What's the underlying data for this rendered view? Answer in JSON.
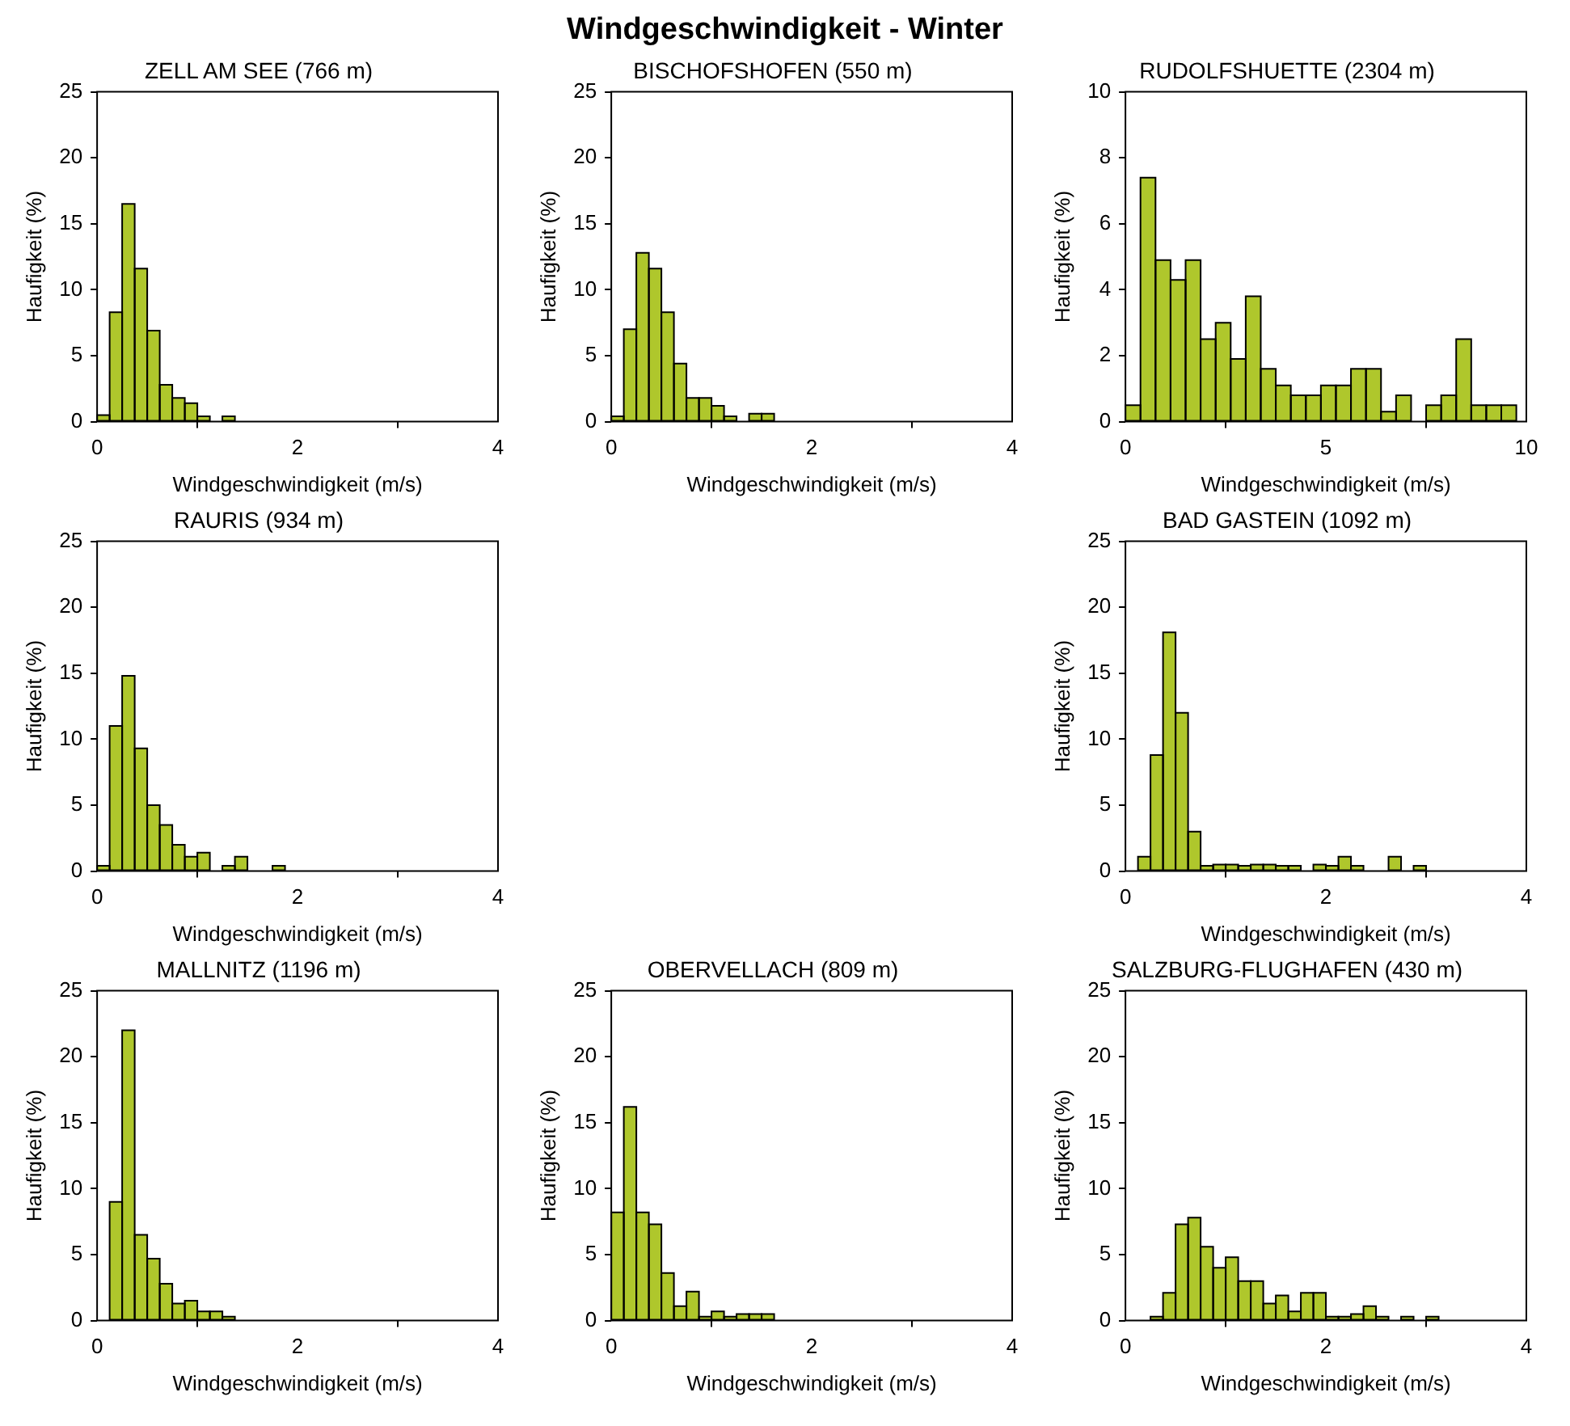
{
  "chart_data": [
    {
      "type": "histogram",
      "title": "ZELL AM SEE (766 m)",
      "xlabel": "Windgeschwindigkeit (m/s)",
      "ylabel": "Haufigkeit (%)",
      "annotations": [
        "Windgeschwindigkeit - Winter"
      ],
      "color": "#afc72c",
      "bins": [
        0,
        0.125,
        0.25,
        0.375,
        0.5,
        0.625,
        0.75,
        0.875,
        1,
        1.125,
        1.25,
        1.375
      ],
      "values": [
        0.5,
        8.3,
        16.5,
        11.6,
        6.9,
        2.8,
        1.8,
        1.4,
        0.4,
        0,
        0.4
      ],
      "xlim": [
        0,
        4
      ],
      "xticks": [
        0,
        2,
        4
      ],
      "ylim": [
        0,
        25
      ],
      "yticks": [
        0,
        5,
        10,
        15,
        20,
        25
      ]
    },
    {
      "type": "histogram",
      "title": "BISCHOFSHOFEN (550 m)",
      "xlabel": "Windgeschwindigkeit (m/s)",
      "ylabel": "Haufigkeit (%)",
      "color": "#afc72c",
      "bins": [
        0,
        0.125,
        0.25,
        0.375,
        0.5,
        0.625,
        0.75,
        0.875,
        1,
        1.125,
        1.25,
        1.375,
        1.5,
        1.625
      ],
      "values": [
        0.4,
        7.0,
        12.8,
        11.6,
        8.3,
        4.4,
        1.8,
        1.8,
        1.2,
        0.4,
        0,
        0.6,
        0.6
      ],
      "xlim": [
        0,
        4
      ],
      "xticks": [
        0,
        2,
        4
      ],
      "ylim": [
        0,
        25
      ],
      "yticks": [
        0,
        5,
        10,
        15,
        20,
        25
      ]
    },
    {
      "type": "histogram",
      "title": "RUDOLFSHUETTE (2304 m)",
      "xlabel": "Windgeschwindigkeit (m/s)",
      "ylabel": "Haufigkeit (%)",
      "color": "#afc72c",
      "bins": [
        0,
        0.375,
        0.75,
        1.125,
        1.5,
        1.875,
        2.25,
        2.625,
        3,
        3.375,
        3.75,
        4.125,
        4.5,
        4.875,
        5.25,
        5.625,
        6,
        6.375,
        6.75,
        7.125,
        7.5,
        7.875,
        8.25,
        8.625,
        9,
        9.375,
        9.75
      ],
      "values": [
        0.5,
        7.4,
        4.9,
        4.3,
        4.9,
        2.5,
        3.0,
        1.9,
        3.8,
        1.6,
        1.1,
        0.8,
        0.8,
        1.1,
        1.1,
        1.6,
        1.6,
        0.3,
        0.8,
        0,
        0.5,
        0.8,
        2.5,
        0.5,
        0.5,
        0.5
      ],
      "xlim": [
        0,
        10
      ],
      "xticks": [
        0,
        5,
        10
      ],
      "ylim": [
        0,
        10
      ],
      "yticks": [
        0,
        2,
        4,
        6,
        8,
        10
      ]
    },
    {
      "type": "histogram",
      "title": "RAURIS (934 m)",
      "xlabel": "Windgeschwindigkeit (m/s)",
      "ylabel": "Haufigkeit (%)",
      "color": "#afc72c",
      "bins": [
        0,
        0.125,
        0.25,
        0.375,
        0.5,
        0.625,
        0.75,
        0.875,
        1,
        1.125,
        1.25,
        1.375,
        1.5,
        1.625,
        1.75,
        1.875
      ],
      "values": [
        0.4,
        11.0,
        14.8,
        9.3,
        5.0,
        3.5,
        2.0,
        1.1,
        1.4,
        0,
        0.4,
        1.1,
        0,
        0,
        0.4
      ],
      "xlim": [
        0,
        4
      ],
      "xticks": [
        0,
        2,
        4
      ],
      "ylim": [
        0,
        25
      ],
      "yticks": [
        0,
        5,
        10,
        15,
        20,
        25
      ]
    },
    {
      "type": "histogram",
      "title": "BAD GASTEIN (1092 m)",
      "xlabel": "Windgeschwindigkeit (m/s)",
      "ylabel": "Haufigkeit (%)",
      "color": "#afc72c",
      "bins": [
        0,
        0.125,
        0.25,
        0.375,
        0.5,
        0.625,
        0.75,
        0.875,
        1,
        1.125,
        1.25,
        1.375,
        1.5,
        1.625,
        1.75,
        1.875,
        2,
        2.125,
        2.25,
        2.375,
        2.5,
        2.625,
        2.75,
        2.875,
        3
      ],
      "values": [
        0,
        1.1,
        8.8,
        18.1,
        12.0,
        3.0,
        0.4,
        0.5,
        0.5,
        0.4,
        0.5,
        0.5,
        0.4,
        0.4,
        0,
        0.5,
        0.4,
        1.1,
        0.4,
        0,
        0,
        1.1,
        0,
        0.4
      ],
      "xlim": [
        0,
        4
      ],
      "xticks": [
        0,
        2,
        4
      ],
      "ylim": [
        0,
        25
      ],
      "yticks": [
        0,
        5,
        10,
        15,
        20,
        25
      ]
    },
    {
      "type": "histogram",
      "title": "MALLNITZ (1196 m)",
      "xlabel": "Windgeschwindigkeit (m/s)",
      "ylabel": "Haufigkeit (%)",
      "color": "#afc72c",
      "bins": [
        0,
        0.125,
        0.25,
        0.375,
        0.5,
        0.625,
        0.75,
        0.875,
        1,
        1.125,
        1.25,
        1.375
      ],
      "values": [
        0,
        9.0,
        22.0,
        6.5,
        4.7,
        2.8,
        1.3,
        1.5,
        0.7,
        0.7,
        0.3
      ],
      "xlim": [
        0,
        4
      ],
      "xticks": [
        0,
        2,
        4
      ],
      "ylim": [
        0,
        25
      ],
      "yticks": [
        0,
        5,
        10,
        15,
        20,
        25
      ]
    },
    {
      "type": "histogram",
      "title": "OBERVELLACH (809 m)",
      "xlabel": "Windgeschwindigkeit (m/s)",
      "ylabel": "Haufigkeit (%)",
      "color": "#afc72c",
      "bins": [
        0,
        0.125,
        0.25,
        0.375,
        0.5,
        0.625,
        0.75,
        0.875,
        1,
        1.125,
        1.25,
        1.375,
        1.5,
        1.625
      ],
      "values": [
        8.2,
        16.2,
        8.2,
        7.3,
        3.6,
        1.1,
        2.2,
        0.3,
        0.7,
        0.3,
        0.5,
        0.5,
        0.5
      ],
      "xlim": [
        0,
        4
      ],
      "xticks": [
        0,
        2,
        4
      ],
      "ylim": [
        0,
        25
      ],
      "yticks": [
        0,
        5,
        10,
        15,
        20,
        25
      ]
    },
    {
      "type": "histogram",
      "title": "SALZBURG-FLUGHAFEN (430 m)",
      "xlabel": "Windgeschwindigkeit (m/s)",
      "ylabel": "Haufigkeit (%)",
      "color": "#afc72c",
      "bins": [
        0,
        0.125,
        0.25,
        0.375,
        0.5,
        0.625,
        0.75,
        0.875,
        1,
        1.125,
        1.25,
        1.375,
        1.5,
        1.625,
        1.75,
        1.875,
        2,
        2.125,
        2.25,
        2.375,
        2.5,
        2.625,
        2.75,
        2.875,
        3,
        3.125
      ],
      "values": [
        0,
        0,
        0.3,
        2.1,
        7.3,
        7.8,
        5.6,
        4.0,
        4.8,
        3.0,
        3.0,
        1.3,
        1.9,
        0.7,
        2.1,
        2.1,
        0.3,
        0.3,
        0.5,
        1.1,
        0.3,
        0,
        0.3,
        0,
        0.3
      ],
      "xlim": [
        0,
        4
      ],
      "xticks": [
        0,
        2,
        4
      ],
      "ylim": [
        0,
        25
      ],
      "yticks": [
        0,
        5,
        10,
        15,
        20,
        25
      ]
    }
  ]
}
